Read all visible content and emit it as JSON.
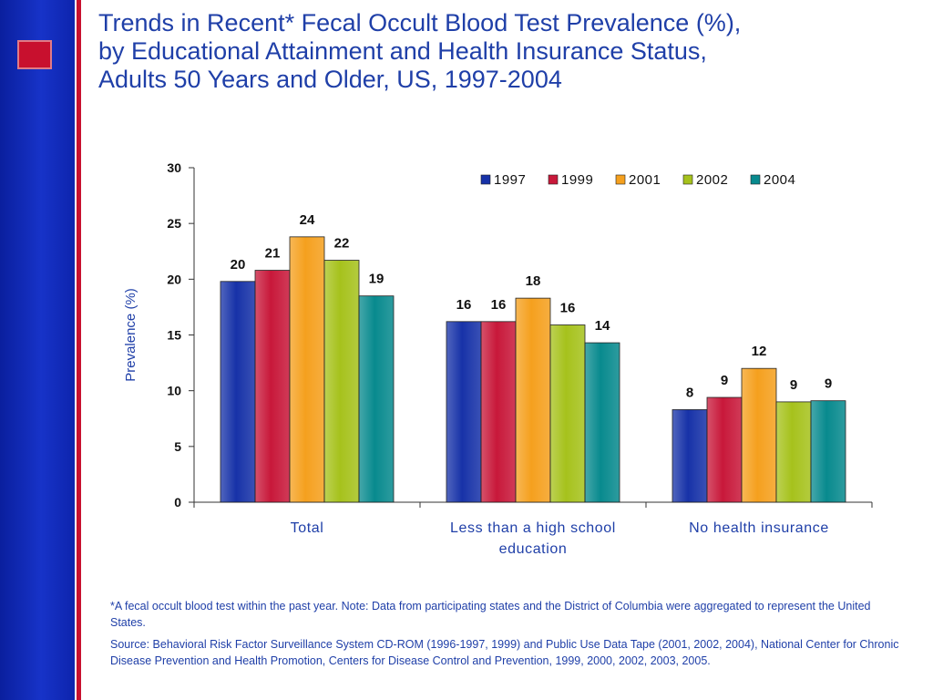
{
  "slide": {
    "title_lines": [
      "Trends in Recent* Fecal Occult Blood Test Prevalence (%),",
      "by Educational Attainment and Health Insurance Status,",
      "Adults 50 Years and Older, US, 1997-2004"
    ],
    "footnote": "*A fecal occult blood test within the past year. Note: Data from participating states and the District of Columbia were aggregated to represent the United States.",
    "source": "Source: Behavioral Risk Factor Surveillance System CD-ROM (1996-1997, 1999) and Public Use Data Tape (2001, 2002, 2004), National Center for Chronic Disease Prevention and Health Promotion, Centers for Disease Control and Prevention, 1999, 2000, 2002, 2003, 2005."
  },
  "chart_data": {
    "type": "bar",
    "title": "",
    "xlabel": "",
    "ylabel": "Prevalence (%)",
    "ylim": [
      0,
      30
    ],
    "yticks": [
      0,
      5,
      10,
      15,
      20,
      25,
      30
    ],
    "grid": false,
    "legend_position": "top-right",
    "categories": [
      [
        "Total"
      ],
      [
        "Less than a high school",
        "education"
      ],
      [
        "No health insurance"
      ]
    ],
    "series": [
      {
        "name": "1997",
        "color": "#1732a8",
        "values": [
          19.8,
          16.2,
          8.3
        ],
        "labels": [
          "20",
          "16",
          "8"
        ]
      },
      {
        "name": "1999",
        "color": "#c8183a",
        "values": [
          20.8,
          16.2,
          9.4
        ],
        "labels": [
          "21",
          "16",
          "9"
        ]
      },
      {
        "name": "2001",
        "color": "#f5a01e",
        "values": [
          23.8,
          18.3,
          12.0
        ],
        "labels": [
          "24",
          "18",
          "12"
        ]
      },
      {
        "name": "2002",
        "color": "#a6c21c",
        "values": [
          21.7,
          15.9,
          9.0
        ],
        "labels": [
          "22",
          "16",
          "9"
        ]
      },
      {
        "name": "2004",
        "color": "#088a8e",
        "values": [
          18.5,
          14.3,
          9.1
        ],
        "labels": [
          "19",
          "14",
          "9"
        ]
      }
    ]
  }
}
